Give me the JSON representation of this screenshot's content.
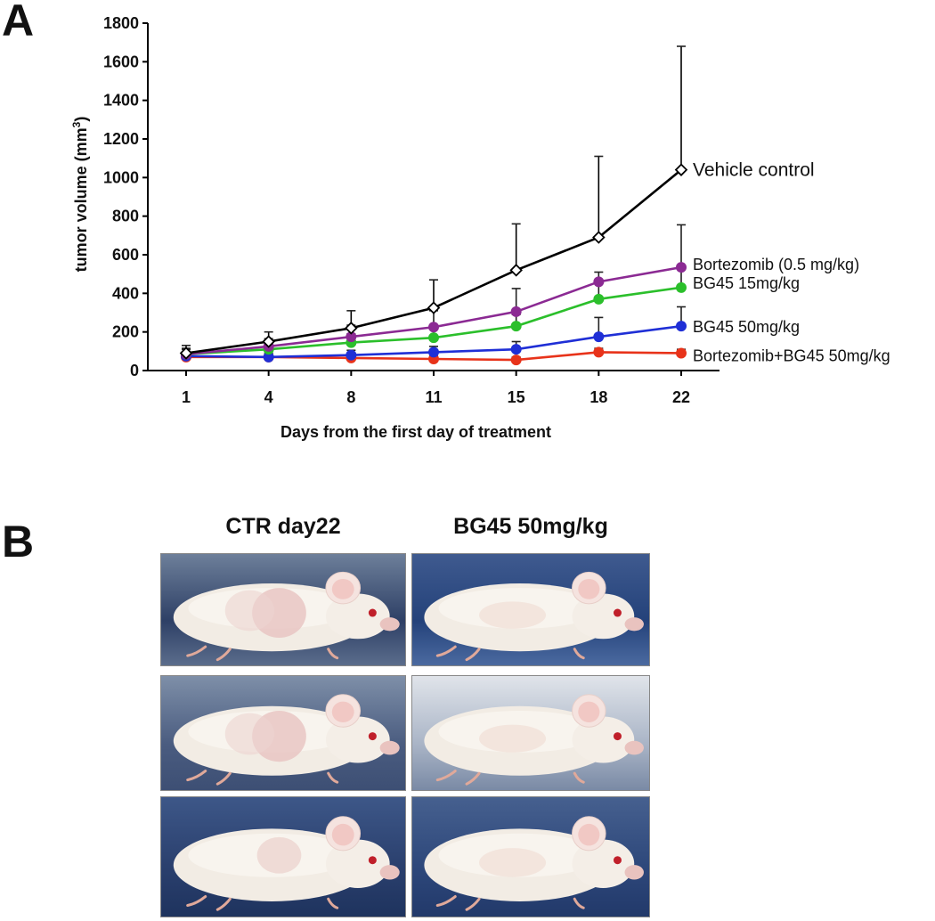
{
  "panel_a": {
    "letter": "A"
  },
  "panel_b": {
    "letter": "B",
    "columns": [
      {
        "heading": "CTR day22"
      },
      {
        "heading": "BG45 50mg/kg"
      }
    ]
  },
  "chart_data": {
    "type": "line",
    "title": "",
    "xlabel": "Days from the first day of treatment",
    "ylabel": "tumor volume (mm",
    "ylabel_sup": "3",
    "ylabel_close": ")",
    "x": [
      1,
      4,
      8,
      11,
      15,
      18,
      22
    ],
    "x_tick_labels": [
      "1",
      "4",
      "8",
      "11",
      "15",
      "18",
      "22"
    ],
    "ylim": [
      0,
      1800
    ],
    "y_ticks": [
      0,
      200,
      400,
      600,
      800,
      1000,
      1200,
      1400,
      1600,
      1800
    ],
    "grid": false,
    "legend": "labels at line ends (right)",
    "series": [
      {
        "name": "Vehicle control",
        "color": "#000000",
        "marker": "open-diamond",
        "values": [
          90,
          150,
          220,
          325,
          520,
          690,
          1040
        ],
        "errors": [
          40,
          50,
          90,
          145,
          240,
          420,
          640
        ]
      },
      {
        "name": "Bortezomib (0.5 mg/kg)",
        "color": "#8b2a93",
        "marker": "filled-circle",
        "values": [
          85,
          125,
          175,
          225,
          305,
          460,
          535
        ],
        "errors": [
          30,
          40,
          60,
          85,
          120,
          50,
          220
        ]
      },
      {
        "name": "BG45 15mg/kg",
        "color": "#2bbf2b",
        "marker": "filled-circle",
        "values": [
          85,
          110,
          145,
          170,
          230,
          370,
          430
        ],
        "errors": [
          25,
          30,
          45,
          55,
          60,
          90,
          100
        ]
      },
      {
        "name": "BG45 50mg/kg",
        "color": "#1f2fd6",
        "marker": "filled-circle",
        "values": [
          75,
          70,
          80,
          95,
          110,
          175,
          230
        ],
        "errors": [
          20,
          20,
          25,
          30,
          40,
          100,
          100
        ]
      },
      {
        "name": "Bortezomib+BG45 50mg/kg",
        "color": "#e8331a",
        "marker": "filled-circle",
        "values": [
          70,
          70,
          65,
          60,
          55,
          95,
          90
        ],
        "errors": [
          15,
          15,
          15,
          15,
          15,
          20,
          20
        ]
      }
    ]
  }
}
